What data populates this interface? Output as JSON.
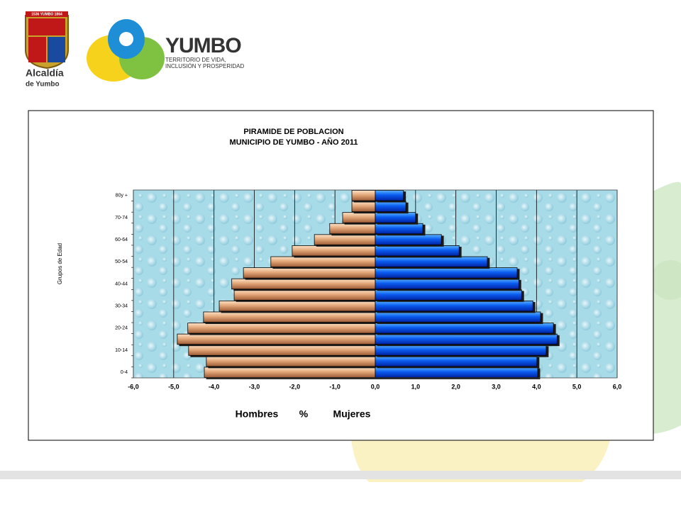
{
  "header": {
    "seal_text": "1536 YUMBO 1864",
    "alcaldia": "Alcaldía",
    "de_yumbo": "de Yumbo",
    "brand": "YUMBO",
    "slogan_1": "TERRITORIO DE VIDA,",
    "slogan_2": "INCLUSIÓN Y PROSPERIDAD"
  },
  "chart_data": {
    "type": "pyramid",
    "title": "PIRAMIDE DE POBLACION",
    "subtitle": "MUNICIPIO DE YUMBO - AÑO 2011",
    "y_label": "Grupos de Edad",
    "x_label_left": "Hombres",
    "x_label": "%",
    "x_label_right": "Mujeres",
    "categories": [
      "0-4",
      null,
      "10-14",
      null,
      "20-24",
      null,
      "30-34",
      null,
      "40-44",
      null,
      "50-54",
      null,
      "60-64",
      null,
      "70-74",
      null,
      "80y +"
    ],
    "series": [
      {
        "name": "Hombres",
        "color": "#d9966a",
        "values": [
          -4.24,
          -4.19,
          -4.63,
          -4.91,
          -4.65,
          -4.26,
          -3.87,
          -3.5,
          -3.56,
          -3.27,
          -2.59,
          -2.06,
          -1.51,
          -1.13,
          -0.81,
          -0.58,
          -0.58
        ]
      },
      {
        "name": "Mujeres",
        "color": "#0a5cf0",
        "values": [
          4.03,
          4.01,
          4.24,
          4.51,
          4.42,
          4.1,
          3.91,
          3.63,
          3.56,
          3.52,
          2.78,
          2.08,
          1.64,
          1.18,
          1.0,
          0.76,
          0.7
        ]
      }
    ],
    "xlim": [
      -6,
      6
    ],
    "xticks": [
      {
        "value": -6,
        "label": "-6,0"
      },
      {
        "value": -5,
        "label": "-5,0"
      },
      {
        "value": -4,
        "label": "-4,0"
      },
      {
        "value": -3,
        "label": "-3,0"
      },
      {
        "value": -2,
        "label": "-2,0"
      },
      {
        "value": -1,
        "label": "-1,0"
      },
      {
        "value": 0,
        "label": "0,0"
      },
      {
        "value": 1,
        "label": "1,0"
      },
      {
        "value": 2,
        "label": "2,0"
      },
      {
        "value": 3,
        "label": "3,0"
      },
      {
        "value": 4,
        "label": "4,0"
      },
      {
        "value": 5,
        "label": "5,0"
      },
      {
        "value": 6,
        "label": "6,0"
      }
    ],
    "grid": true
  }
}
